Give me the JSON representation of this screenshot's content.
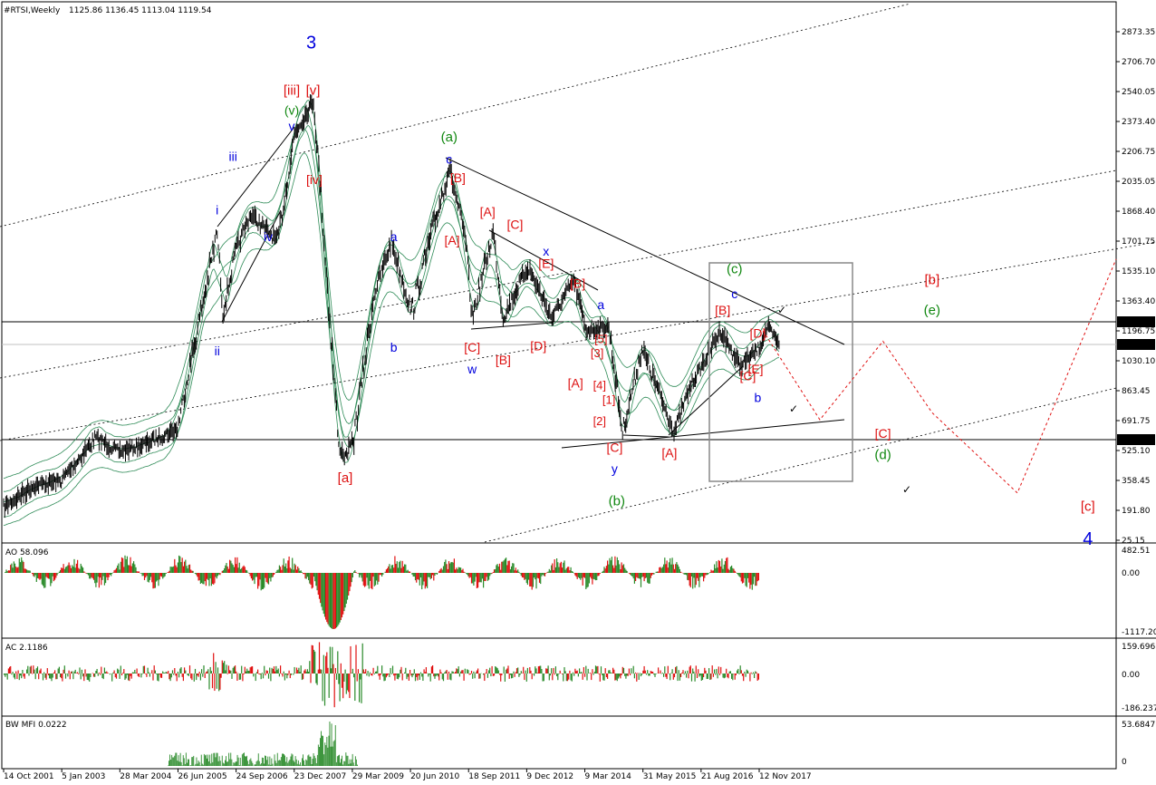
{
  "header": {
    "symbol": "#RTSI,Weekly",
    "ohlc": "1125.86 1136.45 1113.04 1119.54"
  },
  "price_axis": {
    "ticks": [
      "2873.35",
      "2706.70",
      "2540.05",
      "2373.40",
      "2206.75",
      "2035.05",
      "1868.40",
      "1701.75",
      "1535.10",
      "1363.40",
      "1196.75",
      "1030.10",
      "863.45",
      "691.75",
      "525.10",
      "358.45",
      "191.80",
      "25.15"
    ],
    "current_price": "1119.54",
    "level_high": "1243.70",
    "level_low": "580.17"
  },
  "time_axis": {
    "ticks": [
      "14 Oct 2001",
      "5 Jan 2003",
      "28 Mar 2004",
      "26 Jun 2005",
      "24 Sep 2006",
      "23 Dec 2007",
      "29 Mar 2009",
      "20 Jun 2010",
      "18 Sep 2011",
      "9 Dec 2012",
      "9 Mar 2014",
      "31 May 2015",
      "21 Aug 2016",
      "12 Nov 2017"
    ]
  },
  "indicators": {
    "ao": {
      "label": "AO 58.096",
      "ticks": [
        "482.51",
        "0.00",
        "-1117.205"
      ]
    },
    "ac": {
      "label": "AC 2.1186",
      "ticks": [
        "159.6967",
        "0.00",
        "-186.2374"
      ]
    },
    "mfi": {
      "label": "BW MFI 0.0222",
      "ticks": [
        "53.6847",
        "0"
      ]
    }
  },
  "colors": {
    "price": "#000000",
    "bands": "#2e8b57",
    "blue": "#0000dd",
    "red": "#dd1111",
    "green": "#118811",
    "ao_up": "#2a8a2a",
    "ao_down": "#e01010",
    "mfi": "#2a8a2a"
  },
  "chart_data": {
    "type": "line",
    "title": "#RTSI,Weekly",
    "x_range": [
      "2001-10-14",
      "2019-07-01"
    ],
    "y_range": [
      25.15,
      2960
    ],
    "series": [
      {
        "values": [
          [
            "2001-10-14",
            210
          ],
          [
            "2002-06-01",
            330
          ],
          [
            "2003-01-05",
            360
          ],
          [
            "2003-10-01",
            600
          ],
          [
            "2004-03-28",
            520
          ],
          [
            "2004-10-01",
            560
          ],
          [
            "2005-06-26",
            650
          ],
          [
            "2005-10-01",
            1000
          ],
          [
            "2006-05-01",
            1750
          ],
          [
            "2006-06-15",
            1300
          ],
          [
            "2006-09-24",
            1650
          ],
          [
            "2007-01-15",
            1850
          ],
          [
            "2007-08-15",
            1700
          ],
          [
            "2007-12-23",
            2300
          ],
          [
            "2008-05-19",
            2490
          ],
          [
            "2008-08-01",
            1800
          ],
          [
            "2008-12-01",
            550
          ],
          [
            "2009-01-23",
            490
          ],
          [
            "2009-03-29",
            600
          ],
          [
            "2009-09-01",
            1400
          ],
          [
            "2010-01-15",
            1700
          ],
          [
            "2010-06-20",
            1300
          ],
          [
            "2011-04-08",
            2120
          ],
          [
            "2011-08-15",
            1700
          ],
          [
            "2011-10-04",
            1270
          ],
          [
            "2012-03-15",
            1750
          ],
          [
            "2012-06-01",
            1270
          ],
          [
            "2012-12-09",
            1560
          ],
          [
            "2013-06-15",
            1270
          ],
          [
            "2013-12-01",
            1480
          ],
          [
            "2014-03-09",
            1200
          ],
          [
            "2014-09-01",
            1220
          ],
          [
            "2014-12-16",
            630
          ],
          [
            "2015-05-15",
            1100
          ],
          [
            "2015-12-15",
            700
          ],
          [
            "2016-01-20",
            630
          ],
          [
            "2016-06-01",
            900
          ],
          [
            "2016-08-21",
            1000
          ],
          [
            "2017-01-15",
            1200
          ],
          [
            "2017-06-15",
            1000
          ],
          [
            "2017-11-12",
            1100
          ],
          [
            "2018-01-15",
            1220
          ],
          [
            "2018-04-15",
            1119.54
          ]
        ]
      },
      {
        "values": [
          [
            "2018-05-01",
            1200
          ],
          [
            "2018-09-01",
            700
          ],
          [
            "2019-01-15",
            1140
          ],
          [
            "2019-05-01",
            740
          ],
          [
            "2019-11-01",
            290
          ],
          [
            "2020-06-01",
            1600
          ]
        ]
      }
    ],
    "wave_labels": [
      {
        "text": "3",
        "date": "2008-05-01",
        "price": 2780,
        "color": "blue",
        "size": 20
      },
      {
        "text": "[iii]",
        "date": "2007-12-01",
        "price": 2520,
        "color": "red",
        "size": 15
      },
      {
        "text": "[v]",
        "date": "2008-05-15",
        "price": 2520,
        "color": "red",
        "size": 15
      },
      {
        "text": "(v)",
        "date": "2007-12-01",
        "price": 2410,
        "color": "green",
        "size": 14
      },
      {
        "text": "v",
        "date": "2007-12-01",
        "price": 2320,
        "color": "blue",
        "size": 14
      },
      {
        "text": "iii",
        "date": "2006-09-01",
        "price": 2150,
        "color": "blue",
        "size": 14
      },
      {
        "text": "[iv]",
        "date": "2008-05-25",
        "price": 2020,
        "color": "red",
        "size": 14
      },
      {
        "text": "i",
        "date": "2006-05-01",
        "price": 1850,
        "color": "blue",
        "size": 14
      },
      {
        "text": "iv",
        "date": "2007-06-01",
        "price": 1700,
        "color": "blue",
        "size": 14
      },
      {
        "text": "ii",
        "date": "2006-05-01",
        "price": 1060,
        "color": "blue",
        "size": 14
      },
      {
        "text": "[a]",
        "date": "2009-01-20",
        "price": 350,
        "color": "red",
        "size": 15
      },
      {
        "text": "(a)",
        "date": "2011-04-08",
        "price": 2260,
        "color": "green",
        "size": 15
      },
      {
        "text": "c",
        "date": "2011-04-08",
        "price": 2135,
        "color": "blue",
        "size": 14
      },
      {
        "text": "[B]",
        "date": "2011-06-15",
        "price": 2030,
        "color": "red",
        "size": 14
      },
      {
        "text": "[A]",
        "date": "2012-02-01",
        "price": 1840,
        "color": "red",
        "size": 14
      },
      {
        "text": "[C]",
        "date": "2012-09-01",
        "price": 1770,
        "color": "red",
        "size": 14
      },
      {
        "text": "[A]",
        "date": "2011-05-01",
        "price": 1680,
        "color": "red",
        "size": 14
      },
      {
        "text": "a",
        "date": "2010-02-01",
        "price": 1700,
        "color": "blue",
        "size": 14
      },
      {
        "text": "x",
        "date": "2013-05-01",
        "price": 1620,
        "color": "blue",
        "size": 14
      },
      {
        "text": "[E]",
        "date": "2013-05-01",
        "price": 1550,
        "color": "red",
        "size": 14
      },
      {
        "text": "[B]",
        "date": "2014-01-01",
        "price": 1440,
        "color": "red",
        "size": 14
      },
      {
        "text": "b",
        "date": "2010-02-01",
        "price": 1080,
        "color": "blue",
        "size": 14
      },
      {
        "text": "[C]",
        "date": "2011-10-04",
        "price": 1080,
        "color": "red",
        "size": 14
      },
      {
        "text": "w",
        "date": "2011-10-04",
        "price": 960,
        "color": "blue",
        "size": 14
      },
      {
        "text": "[B]",
        "date": "2012-06-01",
        "price": 1010,
        "color": "red",
        "size": 14
      },
      {
        "text": "[D]",
        "date": "2013-03-01",
        "price": 1090,
        "color": "red",
        "size": 14
      },
      {
        "text": "a",
        "date": "2014-07-01",
        "price": 1320,
        "color": "blue",
        "size": 14
      },
      {
        "text": "[5]",
        "date": "2014-07-01",
        "price": 1130,
        "color": "red",
        "size": 13
      },
      {
        "text": "[3]",
        "date": "2014-06-01",
        "price": 1050,
        "color": "red",
        "size": 13
      },
      {
        "text": "[A]",
        "date": "2013-12-15",
        "price": 880,
        "color": "red",
        "size": 14
      },
      {
        "text": "[4]",
        "date": "2014-06-20",
        "price": 870,
        "color": "red",
        "size": 13
      },
      {
        "text": "[1]",
        "date": "2014-09-01",
        "price": 790,
        "color": "red",
        "size": 13
      },
      {
        "text": "[2]",
        "date": "2014-06-20",
        "price": 670,
        "color": "red",
        "size": 13
      },
      {
        "text": "[C]",
        "date": "2014-10-15",
        "price": 520,
        "color": "red",
        "size": 14
      },
      {
        "text": "[A]",
        "date": "2015-12-15",
        "price": 490,
        "color": "red",
        "size": 14
      },
      {
        "text": "y",
        "date": "2014-10-15",
        "price": 400,
        "color": "blue",
        "size": 14
      },
      {
        "text": "(b)",
        "date": "2014-11-01",
        "price": 220,
        "color": "green",
        "size": 15
      },
      {
        "text": "[B]",
        "date": "2017-02-01",
        "price": 1290,
        "color": "red",
        "size": 14
      },
      {
        "text": "[D]",
        "date": "2017-11-01",
        "price": 1160,
        "color": "red",
        "size": 14
      },
      {
        "text": "[C]",
        "date": "2017-08-15",
        "price": 920,
        "color": "red",
        "size": 14
      },
      {
        "text": "[E]",
        "date": "2017-10-15",
        "price": 960,
        "color": "red",
        "size": 14
      },
      {
        "text": "b",
        "date": "2017-11-01",
        "price": 800,
        "color": "blue",
        "size": 14
      },
      {
        "text": "(c)",
        "date": "2018-03-01",
        "price": 1520,
        "color": "green",
        "size": 15
      },
      {
        "text": "c",
        "date": "2018-03-01",
        "price": 1380,
        "color": "blue",
        "size": 14
      },
      {
        "text": "[b]",
        "date": "2019-05-01",
        "price": 1460,
        "color": "red",
        "size": 15
      },
      {
        "text": "(e)",
        "date": "2019-05-01",
        "price": 1290,
        "color": "green",
        "size": 15
      },
      {
        "text": "[C]",
        "date": "2019-01-15",
        "price": 600,
        "color": "red",
        "size": 14
      },
      {
        "text": "(d)",
        "date": "2019-01-15",
        "price": 480,
        "color": "green",
        "size": 15
      },
      {
        "text": "[c]",
        "date": "2020-04-01",
        "price": 190,
        "color": "red",
        "size": 15
      },
      {
        "text": "4",
        "date": "2020-04-01",
        "price": 0,
        "color": "blue",
        "size": 20
      }
    ]
  }
}
